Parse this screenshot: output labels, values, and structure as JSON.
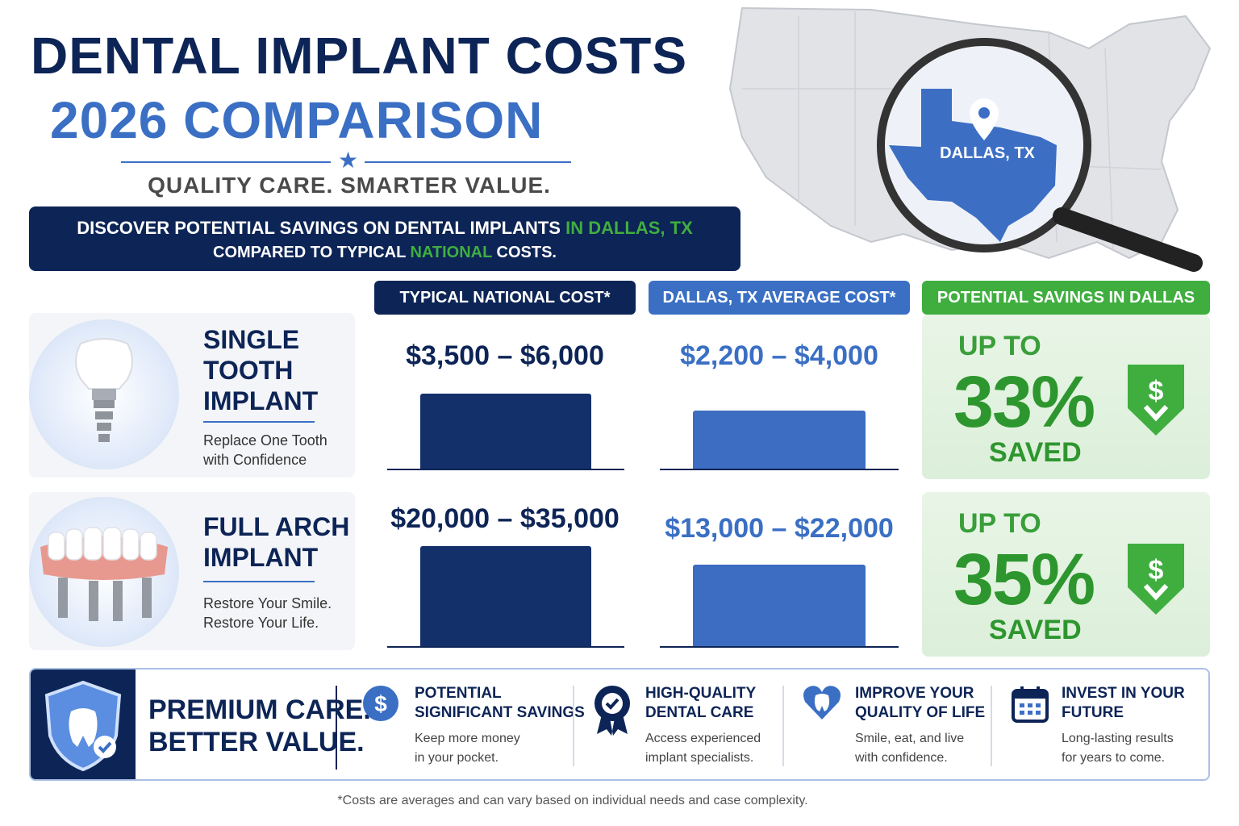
{
  "header": {
    "title_line1": "DENTAL IMPLANT COSTS",
    "title_line2": "2026 COMPARISON",
    "tagline": "QUALITY CARE. SMARTER VALUE."
  },
  "banner": {
    "line1_a": "DISCOVER POTENTIAL SAVINGS ON DENTAL IMPLANTS ",
    "line1_b": "IN DALLAS, TX",
    "line2_a": "COMPARED TO TYPICAL ",
    "line2_b": "NATIONAL",
    "line2_c": " COSTS."
  },
  "map": {
    "location_label": "DALLAS, TX",
    "icon": "magnifier-icon"
  },
  "columns": {
    "national": "TYPICAL NATIONAL COST*",
    "dallas": "DALLAS, TX AVERAGE COST*",
    "savings": "POTENTIAL SAVINGS IN DALLAS"
  },
  "rows": [
    {
      "title_lines": [
        "SINGLE",
        "TOOTH",
        "IMPLANT"
      ],
      "subtitle_lines": [
        "Replace One Tooth",
        "with Confidence"
      ],
      "national_cost": "$3,500 – $6,000",
      "dallas_cost": "$2,200 – $4,000",
      "up_to": "UP TO",
      "percent": "33%",
      "saved": "SAVED"
    },
    {
      "title_lines": [
        "FULL ARCH",
        "IMPLANT"
      ],
      "subtitle_lines": [
        "Restore Your Smile.",
        "Restore Your Life."
      ],
      "national_cost": "$20,000 – $35,000",
      "dallas_cost": "$13,000 – $22,000",
      "up_to": "UP TO",
      "percent": "35%",
      "saved": "SAVED"
    }
  ],
  "bottom": {
    "premium_line1": "PREMIUM CARE.",
    "premium_line2": "BETTER VALUE.",
    "features": [
      {
        "icon": "dollar-icon",
        "title1": "POTENTIAL",
        "title2": "SIGNIFICANT SAVINGS",
        "desc1": "Keep more money",
        "desc2": "in your pocket."
      },
      {
        "icon": "badge-icon",
        "title1": "HIGH-QUALITY",
        "title2": "DENTAL CARE",
        "desc1": "Access experienced",
        "desc2": "implant specialists."
      },
      {
        "icon": "heart-tooth-icon",
        "title1": "IMPROVE YOUR",
        "title2": "QUALITY OF LIFE",
        "desc1": "Smile, eat, and live",
        "desc2": "with confidence."
      },
      {
        "icon": "calendar-icon",
        "title1": "INVEST IN YOUR",
        "title2": "FUTURE",
        "desc1": "Long-lasting results",
        "desc2": "for years to come."
      }
    ]
  },
  "footnote": "*Costs are averages and can vary based on individual needs and case complexity.",
  "colors": {
    "navy": "#0d2456",
    "blue": "#3a6fc4",
    "green": "#2e962e"
  }
}
